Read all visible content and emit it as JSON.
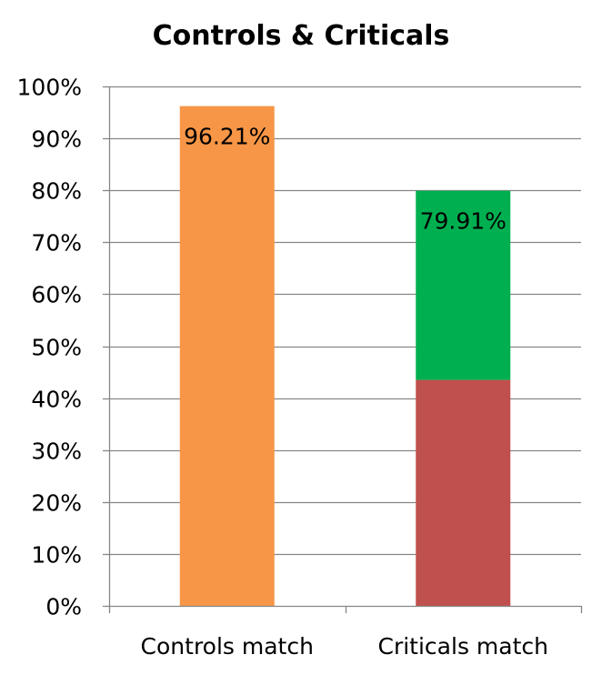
{
  "chart_data": {
    "type": "bar",
    "stacked": true,
    "title": "Controls & Criticals",
    "xlabel": "",
    "ylabel": "",
    "ylim": [
      0,
      1
    ],
    "yticks": [
      0,
      0.1,
      0.2,
      0.3,
      0.4,
      0.5,
      0.6,
      0.7,
      0.8,
      0.9,
      1.0
    ],
    "ytick_labels": [
      "0%",
      "10%",
      "20%",
      "30%",
      "40%",
      "50%",
      "60%",
      "70%",
      "80%",
      "90%",
      "100%"
    ],
    "grid": true,
    "legend": "none",
    "categories": [
      "Controls match",
      "Criticals match"
    ],
    "bars": [
      {
        "category": "Controls match",
        "total_label": "96.21%",
        "segments": [
          {
            "value": 0.9621,
            "color": "#F79646"
          }
        ]
      },
      {
        "category": "Criticals match",
        "total_label": "79.91%",
        "segments": [
          {
            "value": 0.435,
            "color": "#C0504D"
          },
          {
            "value": 0.3641,
            "color": "#00B050"
          }
        ]
      }
    ],
    "colors": {
      "grid": "#868686",
      "axis": "#868686",
      "text": "#000000"
    }
  }
}
